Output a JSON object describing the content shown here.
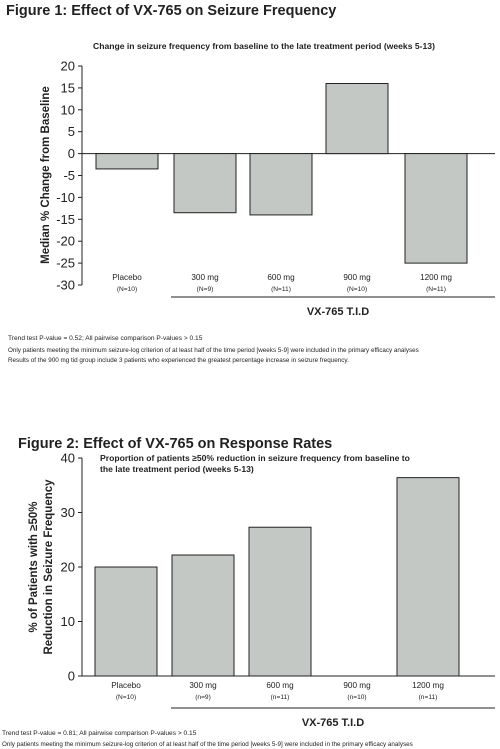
{
  "colors": {
    "bar_fill": "#c3c8c5",
    "bar_stroke": "#222222",
    "axis": "#222222",
    "text": "#222222"
  },
  "figure1": {
    "title": "Figure 1: Effect of VX-765 on Seizure Frequency",
    "subtitle": "Change in seizure frequency from baseline to the late treatment period (weeks 5-13)",
    "group_label": "VX-765 T.I.D",
    "notes": [
      "Trend test P-value = 0.52; All pairwise comparison P-values > 0.15",
      "Only patients meeting the minimum seizure-log criterion of at least half of the time period [weeks 5-9] were included in the primary efficacy analyses",
      "Results of the 900 mg tid group include 3 patients who experienced the greatest percentage increase in seizure frequency."
    ]
  },
  "figure2": {
    "title": "Figure 2: Effect of VX-765 on Response Rates",
    "subtitle_line1": "Proportion of patients ≥50% reduction in seizure frequency from baseline to",
    "subtitle_line2": "the late treatment period (weeks 5-13)",
    "group_label": "VX-765 T.I.D",
    "notes": [
      "Trend test P-value = 0.81; All pairwise comparison P-values > 0.15",
      "Only patients meeting the minimum seizure-log criterion of at least half of the time period [weeks 5-9] were included in the primary efficacy analyses"
    ]
  },
  "chart_data": [
    {
      "type": "bar",
      "title": "Change in seizure frequency from baseline to the late treatment period (weeks 5-13)",
      "ylabel": "Median % Change from Baseline",
      "xlabel": "",
      "categories": [
        "Placebo",
        "300 mg",
        "600 mg",
        "900 mg",
        "1200 mg"
      ],
      "category_n": [
        "(N=10)",
        "(N=9)",
        "(N=11)",
        "(N=10)",
        "(N=11)"
      ],
      "values": [
        -3.5,
        -13.5,
        -14,
        16,
        -25
      ],
      "ylim": [
        -30,
        20
      ],
      "yticks": [
        20,
        15,
        10,
        5,
        0,
        -5,
        -10,
        -15,
        -20,
        -25,
        -30
      ],
      "grid": false
    },
    {
      "type": "bar",
      "title": "Proportion of patients ≥50% reduction in seizure frequency from baseline to the late treatment period (weeks 5-13)",
      "ylabel_line1": "% of Patients with ≥50%",
      "ylabel_line2": "Reduction in Seizure Frequency",
      "xlabel": "",
      "categories": [
        "Placebo",
        "300 mg",
        "600 mg",
        "900 mg",
        "1200 mg"
      ],
      "category_n": [
        "(N=10)",
        "(n=9)",
        "(n=11)",
        "(n=10)",
        "(n=11)"
      ],
      "values": [
        20,
        22.2,
        27.3,
        0,
        36.4
      ],
      "ylim": [
        0,
        40
      ],
      "yticks": [
        40,
        30,
        20,
        10,
        0
      ],
      "grid": false
    }
  ]
}
